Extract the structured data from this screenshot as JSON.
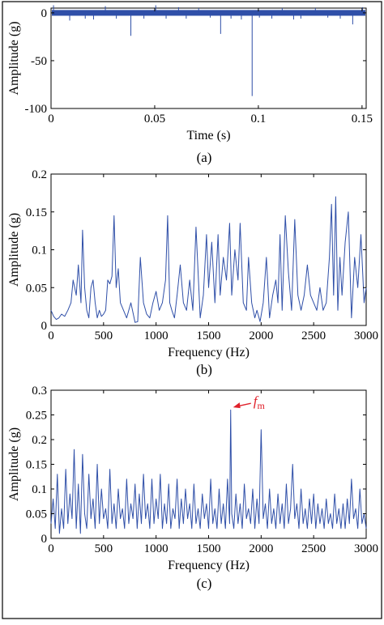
{
  "figure": {
    "border_color": "#000000",
    "line_color": "#2f4fa8",
    "annotation_color": "#e0202a"
  },
  "chart_data": [
    {
      "type": "line",
      "panel_label": "(a)",
      "xlabel": "Time (s)",
      "ylabel": "Amplitude (g)",
      "xlim": [
        0,
        0.152
      ],
      "ylim": [
        -100,
        5
      ],
      "xticks": [
        0,
        0.05,
        0.1,
        0.15
      ],
      "xtick_labels": [
        "0",
        "0.05",
        "0.1",
        "0.15"
      ],
      "yticks": [
        0,
        -50,
        -100
      ],
      "ytick_labels": [
        "0",
        "-50",
        "-100"
      ],
      "grid": false,
      "baseline_band": [
        -3,
        3
      ],
      "series": [
        {
          "x": [
            0.0012,
            0.009,
            0.0165,
            0.0205,
            0.0262,
            0.0315,
            0.0385,
            0.0448,
            0.0505,
            0.0555,
            0.0615,
            0.0652,
            0.0712,
            0.0768,
            0.0818,
            0.0868,
            0.0918,
            0.097,
            0.1005,
            0.1065,
            0.1115,
            0.117,
            0.1205,
            0.1275,
            0.1335,
            0.1395,
            0.1455,
            0.1502
          ],
          "y": [
            8,
            -8,
            -6,
            -7,
            7,
            -6,
            -24,
            -6,
            8,
            -6,
            6,
            -6,
            5,
            -5,
            -22,
            -6,
            -7,
            -87,
            -5,
            -6,
            5,
            -7,
            -6,
            5,
            -5,
            -6,
            -12,
            6
          ]
        }
      ]
    },
    {
      "type": "line",
      "panel_label": "(b)",
      "xlabel": "Frequency (Hz)",
      "ylabel": "Amplitude (g)",
      "xlim": [
        0,
        3000
      ],
      "ylim": [
        0,
        0.2
      ],
      "xticks": [
        0,
        500,
        1000,
        1500,
        2000,
        2500,
        3000
      ],
      "xtick_labels": [
        "0",
        "500",
        "1000",
        "1500",
        "2000",
        "2500",
        "3000"
      ],
      "yticks": [
        0,
        0.05,
        0.1,
        0.15,
        0.2
      ],
      "ytick_labels": [
        "0",
        "0.05",
        "0.1",
        "0.15",
        "0.2"
      ],
      "grid": false,
      "series": [
        {
          "x": [
            0,
            25,
            50,
            75,
            100,
            130,
            160,
            190,
            210,
            240,
            260,
            285,
            300,
            320,
            340,
            360,
            380,
            400,
            420,
            440,
            460,
            480,
            500,
            520,
            540,
            560,
            580,
            600,
            620,
            640,
            660,
            690,
            720,
            760,
            800,
            825,
            850,
            880,
            910,
            940,
            970,
            1000,
            1030,
            1060,
            1090,
            1110,
            1130,
            1150,
            1175,
            1200,
            1230,
            1260,
            1290,
            1320,
            1350,
            1380,
            1420,
            1450,
            1480,
            1500,
            1530,
            1560,
            1590,
            1610,
            1640,
            1670,
            1700,
            1720,
            1750,
            1780,
            1800,
            1830,
            1860,
            1880,
            1910,
            1940,
            1960,
            1990,
            2020,
            2050,
            2080,
            2110,
            2140,
            2160,
            2180,
            2200,
            2230,
            2260,
            2290,
            2320,
            2350,
            2380,
            2410,
            2440,
            2470,
            2500,
            2530,
            2560,
            2590,
            2620,
            2650,
            2670,
            2690,
            2710,
            2730,
            2750,
            2770,
            2800,
            2830,
            2860,
            2890,
            2920,
            2950,
            2980,
            3000
          ],
          "y": [
            0.02,
            0.012,
            0.008,
            0.01,
            0.015,
            0.012,
            0.02,
            0.03,
            0.06,
            0.04,
            0.08,
            0.03,
            0.126,
            0.05,
            0.02,
            0.01,
            0.05,
            0.06,
            0.03,
            0.01,
            0.02,
            0.012,
            0.015,
            0.02,
            0.06,
            0.055,
            0.065,
            0.145,
            0.05,
            0.075,
            0.03,
            0.02,
            0.01,
            0.03,
            0.004,
            0.005,
            0.09,
            0.03,
            0.015,
            0.01,
            0.03,
            0.045,
            0.02,
            0.03,
            0.06,
            0.145,
            0.03,
            0.02,
            0.01,
            0.04,
            0.08,
            0.03,
            0.02,
            0.06,
            0.02,
            0.13,
            0.01,
            0.04,
            0.12,
            0.05,
            0.11,
            0.03,
            0.12,
            0.04,
            0.09,
            0.06,
            0.135,
            0.04,
            0.1,
            0.06,
            0.135,
            0.03,
            0.02,
            0.09,
            0.03,
            0.01,
            0.02,
            0.005,
            0.03,
            0.09,
            0.01,
            0.04,
            0.06,
            0.03,
            0.12,
            0.02,
            0.145,
            0.07,
            0.02,
            0.14,
            0.04,
            0.02,
            0.04,
            0.08,
            0.04,
            0.03,
            0.02,
            0.05,
            0.02,
            0.03,
            0.09,
            0.16,
            0.04,
            0.17,
            0.02,
            0.09,
            0.04,
            0.11,
            0.15,
            0.01,
            0.09,
            0.05,
            0.12,
            0.03,
            0.05
          ]
        }
      ]
    },
    {
      "type": "line",
      "panel_label": "(c)",
      "xlabel": "Frequency (Hz)",
      "ylabel": "Amplitude (g)",
      "xlim": [
        0,
        3000
      ],
      "ylim": [
        0,
        0.3
      ],
      "xticks": [
        0,
        500,
        1000,
        1500,
        2000,
        2500,
        3000
      ],
      "xtick_labels": [
        "0",
        "500",
        "1000",
        "1500",
        "2000",
        "2500",
        "3000"
      ],
      "yticks": [
        0,
        0.05,
        0.1,
        0.15,
        0.2,
        0.25,
        0.3
      ],
      "ytick_labels": [
        "0",
        "0.05",
        "0.1",
        "0.15",
        "0.2",
        "0.25",
        "0.3"
      ],
      "grid": false,
      "annotation": {
        "text_main": "f",
        "text_sub": "m",
        "x": 1710,
        "y": 0.262
      },
      "series": [
        {
          "x": [
            0,
            20,
            40,
            60,
            80,
            100,
            120,
            140,
            160,
            180,
            200,
            220,
            240,
            260,
            280,
            300,
            320,
            340,
            360,
            380,
            400,
            420,
            440,
            460,
            480,
            500,
            520,
            540,
            560,
            580,
            600,
            620,
            640,
            660,
            680,
            700,
            720,
            740,
            760,
            780,
            800,
            820,
            840,
            860,
            880,
            900,
            920,
            940,
            960,
            980,
            1000,
            1020,
            1040,
            1060,
            1080,
            1100,
            1120,
            1140,
            1160,
            1180,
            1200,
            1220,
            1240,
            1260,
            1280,
            1300,
            1320,
            1340,
            1360,
            1380,
            1400,
            1420,
            1440,
            1460,
            1480,
            1500,
            1520,
            1540,
            1560,
            1580,
            1600,
            1620,
            1640,
            1660,
            1680,
            1700,
            1710,
            1720,
            1740,
            1760,
            1780,
            1800,
            1820,
            1840,
            1860,
            1880,
            1900,
            1920,
            1940,
            1960,
            1980,
            2000,
            2020,
            2040,
            2060,
            2080,
            2100,
            2120,
            2140,
            2160,
            2180,
            2200,
            2220,
            2240,
            2260,
            2280,
            2300,
            2320,
            2340,
            2360,
            2380,
            2400,
            2420,
            2440,
            2460,
            2480,
            2500,
            2520,
            2540,
            2560,
            2580,
            2600,
            2620,
            2640,
            2660,
            2680,
            2700,
            2720,
            2740,
            2760,
            2780,
            2800,
            2820,
            2840,
            2860,
            2880,
            2900,
            2920,
            2940,
            2960,
            2980,
            3000
          ],
          "y": [
            0.03,
            0.08,
            0.02,
            0.13,
            0.01,
            0.06,
            0.02,
            0.14,
            0.03,
            0.09,
            0.04,
            0.18,
            0.02,
            0.11,
            0.01,
            0.17,
            0.05,
            0.02,
            0.13,
            0.04,
            0.08,
            0.02,
            0.15,
            0.03,
            0.1,
            0.04,
            0.06,
            0.02,
            0.14,
            0.03,
            0.07,
            0.02,
            0.1,
            0.04,
            0.06,
            0.02,
            0.12,
            0.03,
            0.07,
            0.04,
            0.11,
            0.02,
            0.09,
            0.03,
            0.13,
            0.04,
            0.07,
            0.02,
            0.12,
            0.03,
            0.08,
            0.04,
            0.13,
            0.02,
            0.07,
            0.03,
            0.11,
            0.02,
            0.06,
            0.04,
            0.12,
            0.02,
            0.08,
            0.03,
            0.1,
            0.04,
            0.07,
            0.02,
            0.11,
            0.03,
            0.06,
            0.02,
            0.09,
            0.04,
            0.07,
            0.02,
            0.12,
            0.03,
            0.06,
            0.02,
            0.1,
            0.03,
            0.07,
            0.02,
            0.12,
            0.03,
            0.26,
            0.05,
            0.02,
            0.09,
            0.03,
            0.07,
            0.02,
            0.11,
            0.04,
            0.06,
            0.03,
            0.1,
            0.02,
            0.08,
            0.03,
            0.22,
            0.04,
            0.07,
            0.02,
            0.1,
            0.03,
            0.06,
            0.02,
            0.09,
            0.03,
            0.07,
            0.02,
            0.11,
            0.03,
            0.06,
            0.15,
            0.04,
            0.07,
            0.02,
            0.1,
            0.03,
            0.06,
            0.02,
            0.08,
            0.03,
            0.09,
            0.02,
            0.07,
            0.03,
            0.06,
            0.02,
            0.08,
            0.03,
            0.05,
            0.02,
            0.09,
            0.03,
            0.06,
            0.02,
            0.07,
            0.02,
            0.08,
            0.03,
            0.12,
            0.04,
            0.06,
            0.02,
            0.1,
            0.03,
            0.05,
            0.02
          ]
        }
      ]
    }
  ]
}
